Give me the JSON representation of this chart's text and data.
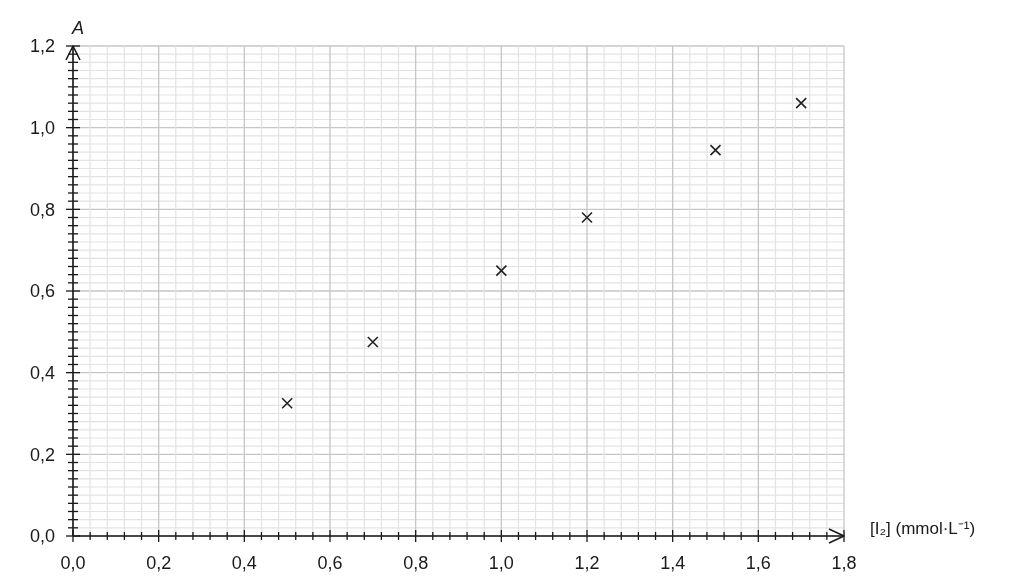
{
  "chart_data": {
    "type": "scatter",
    "xlabel": "[I₂] (mmol·L⁻¹)",
    "ylabel": "A",
    "x": [
      0.5,
      0.7,
      1.0,
      1.2,
      1.5,
      1.7
    ],
    "series": [
      {
        "color": "#222222",
        "values": [
          0.325,
          0.475,
          0.65,
          0.78,
          0.945,
          1.06
        ]
      }
    ],
    "xlim": [
      0,
      1.8
    ],
    "ylim": [
      0,
      1.2
    ],
    "xticks": [
      {
        "value": 0,
        "label": "0,0"
      },
      {
        "value": 0.04,
        "label": null
      },
      {
        "value": 0.08,
        "label": null
      },
      {
        "value": 0.12,
        "label": null
      },
      {
        "value": 0.16,
        "label": null
      },
      {
        "value": 0.2,
        "label": "0,2"
      },
      {
        "value": 0.24,
        "label": null
      },
      {
        "value": 0.28,
        "label": null
      },
      {
        "value": 0.32,
        "label": null
      },
      {
        "value": 0.36,
        "label": null
      },
      {
        "value": 0.4,
        "label": "0,4"
      },
      {
        "value": 0.44,
        "label": null
      },
      {
        "value": 0.48,
        "label": null
      },
      {
        "value": 0.52,
        "label": null
      },
      {
        "value": 0.56,
        "label": null
      },
      {
        "value": 0.6,
        "label": "0,6"
      },
      {
        "value": 0.64,
        "label": null
      },
      {
        "value": 0.68,
        "label": null
      },
      {
        "value": 0.72,
        "label": null
      },
      {
        "value": 0.76,
        "label": null
      },
      {
        "value": 0.8,
        "label": "0,8"
      },
      {
        "value": 0.84,
        "label": null
      },
      {
        "value": 0.88,
        "label": null
      },
      {
        "value": 0.92,
        "label": null
      },
      {
        "value": 0.96,
        "label": null
      },
      {
        "value": 1,
        "label": "1,0"
      },
      {
        "value": 1.04,
        "label": null
      },
      {
        "value": 1.08,
        "label": null
      },
      {
        "value": 1.12,
        "label": null
      },
      {
        "value": 1.16,
        "label": null
      },
      {
        "value": 1.2,
        "label": "1,2"
      },
      {
        "value": 1.24,
        "label": null
      },
      {
        "value": 1.28,
        "label": null
      },
      {
        "value": 1.32,
        "label": null
      },
      {
        "value": 1.36,
        "label": null
      },
      {
        "value": 1.4,
        "label": "1,4"
      },
      {
        "value": 1.44,
        "label": null
      },
      {
        "value": 1.48,
        "label": null
      },
      {
        "value": 1.52,
        "label": null
      },
      {
        "value": 1.56,
        "label": null
      },
      {
        "value": 1.6,
        "label": "1,6"
      },
      {
        "value": 1.64,
        "label": null
      },
      {
        "value": 1.68,
        "label": null
      },
      {
        "value": 1.72,
        "label": null
      },
      {
        "value": 1.76,
        "label": null
      },
      {
        "value": 1.8,
        "label": "1,8"
      }
    ],
    "yticks": [
      {
        "value": 0,
        "label": "0,0"
      },
      {
        "value": 0.02,
        "label": null
      },
      {
        "value": 0.04,
        "label": null
      },
      {
        "value": 0.06,
        "label": null
      },
      {
        "value": 0.08,
        "label": null
      },
      {
        "value": 0.1,
        "label": null
      },
      {
        "value": 0.12,
        "label": null
      },
      {
        "value": 0.14,
        "label": null
      },
      {
        "value": 0.16,
        "label": null
      },
      {
        "value": 0.18,
        "label": null
      },
      {
        "value": 0.2,
        "label": "0,2"
      },
      {
        "value": 0.22,
        "label": null
      },
      {
        "value": 0.24,
        "label": null
      },
      {
        "value": 0.26,
        "label": null
      },
      {
        "value": 0.28,
        "label": null
      },
      {
        "value": 0.3,
        "label": null
      },
      {
        "value": 0.32,
        "label": null
      },
      {
        "value": 0.34,
        "label": null
      },
      {
        "value": 0.36,
        "label": null
      },
      {
        "value": 0.38,
        "label": null
      },
      {
        "value": 0.4,
        "label": "0,4"
      },
      {
        "value": 0.42,
        "label": null
      },
      {
        "value": 0.44,
        "label": null
      },
      {
        "value": 0.46,
        "label": null
      },
      {
        "value": 0.48,
        "label": null
      },
      {
        "value": 0.5,
        "label": null
      },
      {
        "value": 0.52,
        "label": null
      },
      {
        "value": 0.54,
        "label": null
      },
      {
        "value": 0.56,
        "label": null
      },
      {
        "value": 0.58,
        "label": null
      },
      {
        "value": 0.6,
        "label": "0,6"
      },
      {
        "value": 0.62,
        "label": null
      },
      {
        "value": 0.64,
        "label": null
      },
      {
        "value": 0.66,
        "label": null
      },
      {
        "value": 0.68,
        "label": null
      },
      {
        "value": 0.7,
        "label": null
      },
      {
        "value": 0.72,
        "label": null
      },
      {
        "value": 0.74,
        "label": null
      },
      {
        "value": 0.76,
        "label": null
      },
      {
        "value": 0.78,
        "label": null
      },
      {
        "value": 0.8,
        "label": "0,8"
      },
      {
        "value": 0.82,
        "label": null
      },
      {
        "value": 0.84,
        "label": null
      },
      {
        "value": 0.86,
        "label": null
      },
      {
        "value": 0.88,
        "label": null
      },
      {
        "value": 0.9,
        "label": null
      },
      {
        "value": 0.92,
        "label": null
      },
      {
        "value": 0.94,
        "label": null
      },
      {
        "value": 0.96,
        "label": null
      },
      {
        "value": 0.98,
        "label": null
      },
      {
        "value": 1,
        "label": "1,0"
      },
      {
        "value": 1.02,
        "label": null
      },
      {
        "value": 1.04,
        "label": null
      },
      {
        "value": 1.06,
        "label": null
      },
      {
        "value": 1.08,
        "label": null
      },
      {
        "value": 1.1,
        "label": null
      },
      {
        "value": 1.12,
        "label": null
      },
      {
        "value": 1.14,
        "label": null
      },
      {
        "value": 1.16,
        "label": null
      },
      {
        "value": 1.18,
        "label": null
      },
      {
        "value": 1.2,
        "label": "1,2"
      }
    ],
    "grid": true,
    "marker": "cross"
  }
}
